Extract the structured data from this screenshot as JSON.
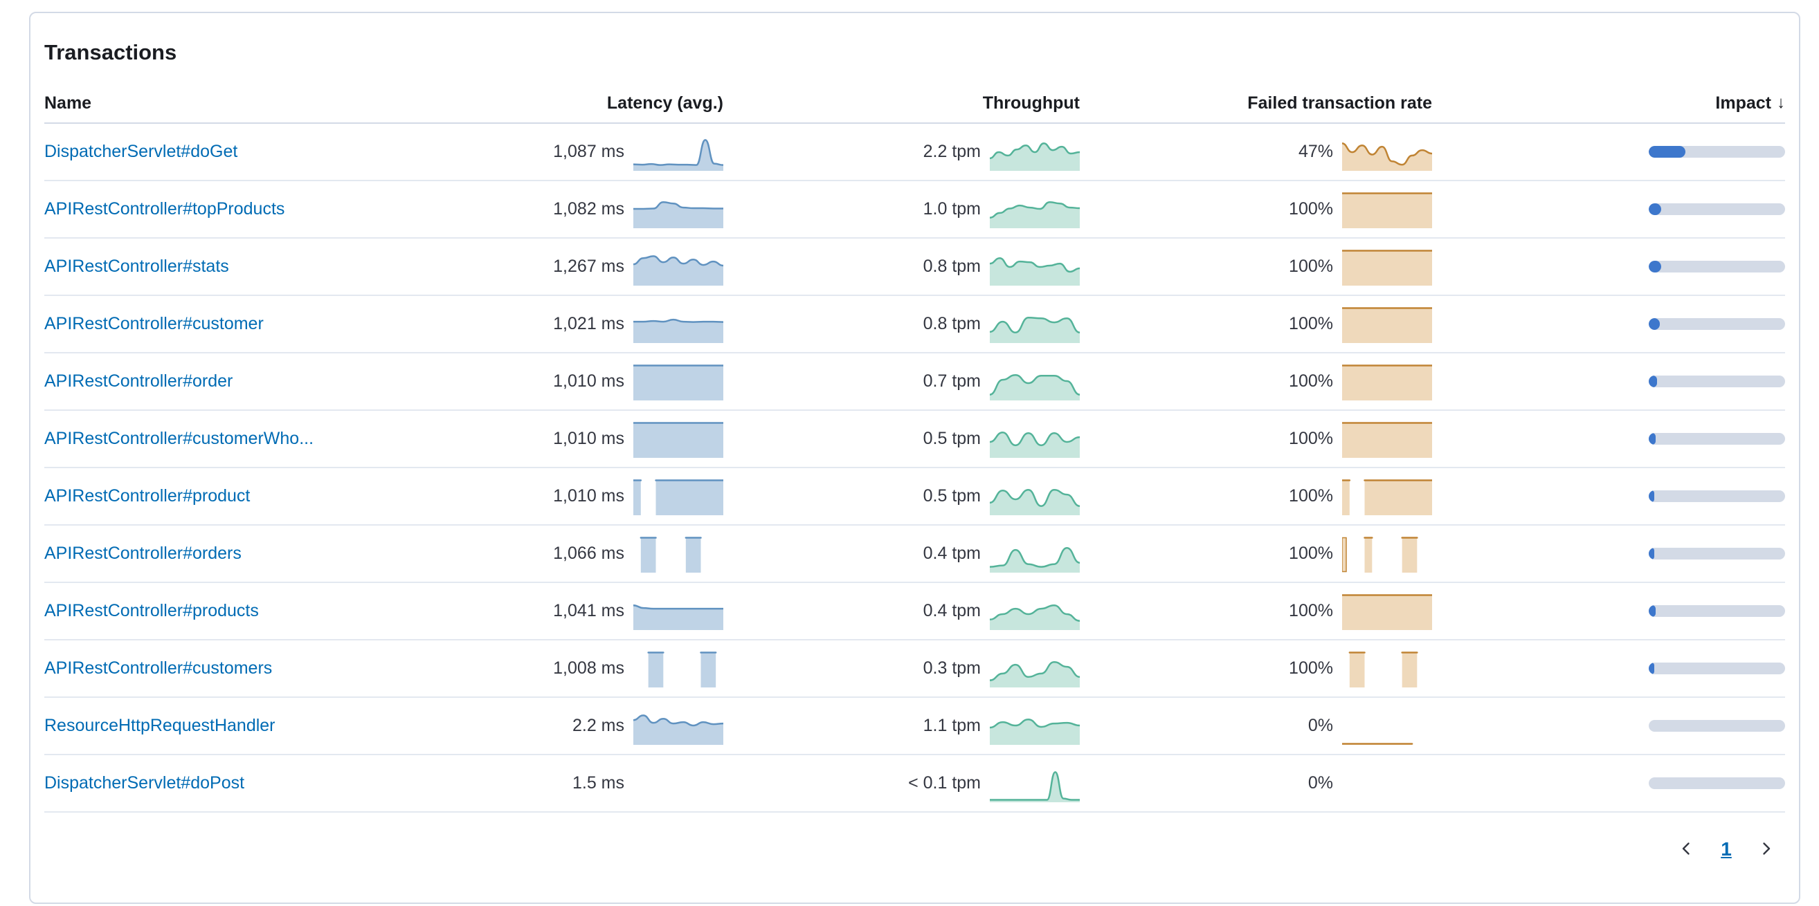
{
  "panel": {
    "title": "Transactions"
  },
  "table": {
    "columns": {
      "name": "Name",
      "latency": "Latency (avg.)",
      "throughput": "Throughput",
      "failed": "Failed transaction rate",
      "impact": "Impact",
      "sort_icon": "↓"
    },
    "rows": [
      {
        "name": "DispatcherServlet#doGet",
        "latency": "1,087 ms",
        "throughput": "2.2 tpm",
        "failed": "47%",
        "impact_pct": 27,
        "latency_series": [
          16,
          15,
          17,
          14,
          16,
          15,
          15,
          14,
          88,
          18,
          14
        ],
        "throughput_series": [
          34,
          52,
          42,
          60,
          72,
          52,
          78,
          58,
          68,
          48,
          52
        ],
        "failed_series": [
          78,
          52,
          72,
          45,
          68,
          25,
          15,
          42,
          58,
          48
        ]
      },
      {
        "name": "APIRestController#topProducts",
        "latency": "1,082 ms",
        "throughput": "1.0 tpm",
        "failed": "100%",
        "impact_pct": 9,
        "latency_series": [
          54,
          54,
          55,
          74,
          70,
          58,
          56,
          56,
          55,
          55
        ],
        "throughput_series": [
          28,
          42,
          55,
          64,
          58,
          54,
          74,
          70,
          58,
          56
        ],
        "failed_series": [
          100,
          100,
          100,
          100,
          100,
          100,
          100,
          100,
          100,
          100
        ]
      },
      {
        "name": "APIRestController#stats",
        "latency": "1,267 ms",
        "throughput": "0.8 tpm",
        "failed": "100%",
        "impact_pct": 9,
        "latency_series": [
          60,
          78,
          84,
          66,
          80,
          62,
          74,
          58,
          68,
          56
        ],
        "throughput_series": [
          62,
          78,
          52,
          68,
          66,
          52,
          56,
          62,
          38,
          48
        ],
        "failed_series": [
          100,
          100,
          100,
          100,
          100,
          100,
          100,
          100,
          100,
          100
        ]
      },
      {
        "name": "APIRestController#customer",
        "latency": "1,021 ms",
        "throughput": "0.8 tpm",
        "failed": "100%",
        "impact_pct": 8,
        "latency_series": [
          60,
          60,
          62,
          60,
          66,
          60,
          59,
          60,
          60,
          59
        ],
        "throughput_series": [
          30,
          60,
          28,
          72,
          70,
          58,
          70,
          28
        ],
        "failed_series": [
          100,
          100,
          100,
          100,
          100,
          100,
          100,
          100,
          100,
          100
        ]
      },
      {
        "name": "APIRestController#order",
        "latency": "1,010 ms",
        "throughput": "0.7 tpm",
        "failed": "100%",
        "impact_pct": 6,
        "latency_series": [
          100,
          100,
          100,
          100,
          100,
          100,
          100,
          100,
          100,
          100
        ],
        "throughput_series": [
          14,
          58,
          72,
          48,
          70,
          70,
          54,
          14
        ],
        "failed_series": [
          100,
          100,
          100,
          100,
          100,
          100,
          100,
          100,
          100,
          100
        ]
      },
      {
        "name": "APIRestController#customerWho...",
        "latency": "1,010 ms",
        "throughput": "0.5 tpm",
        "failed": "100%",
        "impact_pct": 5,
        "latency_series": [
          100,
          100,
          100,
          100,
          100,
          100,
          100,
          100,
          100,
          100
        ],
        "throughput_series": [
          44,
          72,
          34,
          70,
          34,
          70,
          44,
          58
        ],
        "failed_series": [
          100,
          100,
          100,
          100,
          100,
          100,
          100,
          100,
          100,
          100
        ]
      },
      {
        "name": "APIRestController#product",
        "latency": "1,010 ms",
        "throughput": "0.5 tpm",
        "failed": "100%",
        "impact_pct": 4,
        "latency_series": [
          100,
          100,
          null,
          100,
          100,
          100,
          100,
          100,
          100,
          100,
          100,
          100,
          100
        ],
        "throughput_series": [
          34,
          70,
          44,
          72,
          24,
          72,
          58,
          24
        ],
        "failed_series": [
          100,
          100,
          null,
          100,
          100,
          100,
          100,
          100,
          100,
          100,
          100,
          100,
          100
        ]
      },
      {
        "name": "APIRestController#orders",
        "latency": "1,066 ms",
        "throughput": "0.4 tpm",
        "failed": "100%",
        "impact_pct": 4,
        "latency_series": [
          null,
          100,
          100,
          100,
          null,
          null,
          null,
          100,
          100,
          100,
          null,
          null,
          null
        ],
        "throughput_series": [
          14,
          18,
          64,
          22,
          14,
          22,
          70,
          26
        ],
        "failed_series": [
          100,
          null,
          null,
          100,
          100,
          null,
          null,
          null,
          100,
          100,
          100,
          null,
          null
        ]
      },
      {
        "name": "APIRestController#products",
        "latency": "1,041 ms",
        "throughput": "0.4 tpm",
        "failed": "100%",
        "impact_pct": 5,
        "latency_series": [
          70,
          62,
          60,
          60,
          60,
          60,
          60,
          60,
          60,
          60
        ],
        "throughput_series": [
          28,
          44,
          60,
          44,
          60,
          70,
          44,
          24
        ],
        "failed_series": [
          100,
          100,
          100,
          100,
          100,
          100,
          100,
          100,
          100,
          100
        ]
      },
      {
        "name": "APIRestController#customers",
        "latency": "1,008 ms",
        "throughput": "0.3 tpm",
        "failed": "100%",
        "impact_pct": 4,
        "latency_series": [
          null,
          null,
          100,
          100,
          100,
          null,
          null,
          null,
          null,
          100,
          100,
          100,
          null
        ],
        "throughput_series": [
          18,
          38,
          64,
          28,
          38,
          72,
          58,
          28
        ],
        "failed_series": [
          null,
          100,
          100,
          100,
          null,
          null,
          null,
          null,
          100,
          100,
          100,
          null,
          null
        ]
      },
      {
        "name": "ResourceHttpRequestHandler",
        "latency": "2.2 ms",
        "throughput": "1.1 tpm",
        "failed": "0%",
        "impact_pct": 0,
        "latency_series": [
          70,
          84,
          62,
          74,
          60,
          64,
          54,
          64,
          58,
          60
        ],
        "throughput_series": [
          48,
          64,
          54,
          72,
          50,
          60,
          62,
          54
        ],
        "failed_series": [
          0,
          0,
          0,
          0,
          0,
          0,
          0,
          0,
          null,
          null
        ]
      },
      {
        "name": "DispatcherServlet#doPost",
        "latency": "1.5 ms",
        "throughput": "< 0.1 tpm",
        "failed": "0%",
        "impact_pct": 0,
        "latency_series": [],
        "throughput_series": [
          4,
          4,
          4,
          4,
          4,
          4,
          4,
          4,
          86,
          8,
          4,
          4
        ],
        "failed_series": []
      }
    ]
  },
  "pagination": {
    "page": "1"
  },
  "colors": {
    "latency_stroke": "#6092c0",
    "latency_fill": "rgba(96,146,192,0.40)",
    "throughput_stroke": "#54b399",
    "throughput_fill": "rgba(84,179,153,0.33)",
    "failed_stroke": "#c08434",
    "failed_fill": "rgba(215,161,86,0.40)",
    "impact_fill": "#3d77cc",
    "impact_track": "#d3dae6",
    "link": "#006bb4"
  }
}
